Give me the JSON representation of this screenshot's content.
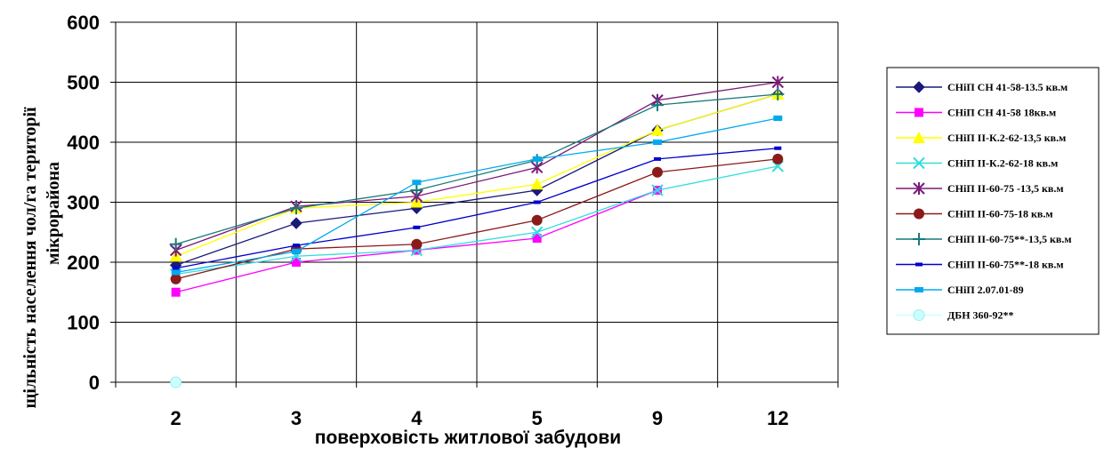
{
  "chart_data": {
    "type": "line",
    "xlabel": "поверховість житлової забудови",
    "ylabel_lines": [
      "щільність населення чол/га території",
      "мікрорайона"
    ],
    "ylim": [
      0,
      600
    ],
    "yticks": [
      0,
      100,
      200,
      300,
      400,
      500,
      600
    ],
    "categories": [
      "2",
      "3",
      "4",
      "5",
      "9",
      "12"
    ],
    "grid": true,
    "legend_position": "right",
    "series": [
      {
        "name": "СНіП СН 41-58-13.5 кв.м",
        "color": "#1a1a7a",
        "marker": "diamond",
        "values": [
          195,
          265,
          290,
          320,
          420,
          480
        ]
      },
      {
        "name": "СНіП СН 41-58 18кв.м",
        "color": "#ff00ff",
        "marker": "square",
        "values": [
          150,
          200,
          220,
          240,
          320,
          null
        ]
      },
      {
        "name": "СНіП ІІ-К.2-62-13,5 кв.м",
        "color": "#ffff00",
        "marker": "triangle",
        "values": [
          210,
          290,
          300,
          330,
          420,
          480
        ]
      },
      {
        "name": "СНіП ІІ-К.2-62-18 кв.м",
        "color": "#33dddd",
        "marker": "x",
        "values": [
          180,
          210,
          220,
          250,
          320,
          360
        ]
      },
      {
        "name": "СНіП ІІ-60-75 -13,5 кв.м",
        "color": "#7a1a7a",
        "marker": "star",
        "values": [
          220,
          293,
          310,
          358,
          470,
          500
        ]
      },
      {
        "name": "СНіП ІІ-60-75-18 кв.м",
        "color": "#8b1a1a",
        "marker": "circle",
        "values": [
          172,
          222,
          230,
          270,
          350,
          372
        ]
      },
      {
        "name": "СНіП ІІ-60-75**-13,5 кв.м",
        "color": "#1a7a7a",
        "marker": "plus",
        "values": [
          230,
          290,
          320,
          370,
          462,
          480
        ]
      },
      {
        "name": "СНіП ІІ-60-75**-18 кв.м",
        "color": "#0000cc",
        "marker": "dash",
        "values": [
          190,
          228,
          258,
          300,
          372,
          390
        ]
      },
      {
        "name": "СНіП 2.07.01-89",
        "color": "#00aaee",
        "marker": "bar",
        "values": [
          183,
          218,
          333,
          372,
          400,
          440
        ]
      },
      {
        "name": "ДБН 360-92**",
        "color": "#ccffff",
        "marker": "circle-light",
        "values": [
          0,
          null,
          null,
          null,
          null,
          null
        ]
      }
    ]
  }
}
